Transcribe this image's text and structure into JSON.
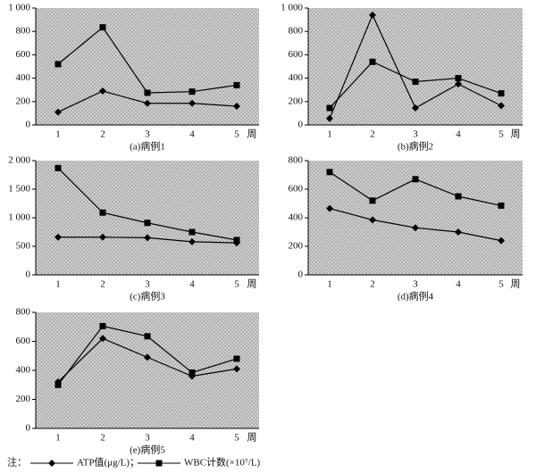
{
  "chart_data": [
    {
      "type": "line",
      "title": "(a)病例1",
      "xlabel": "周",
      "categories": [
        "1",
        "2",
        "3",
        "4",
        "5"
      ],
      "ylim": [
        0,
        1000
      ],
      "yticks": [
        0,
        200,
        400,
        600,
        800,
        {
          "value": 1000,
          "label": "1 000"
        }
      ],
      "series": [
        {
          "color": "#000000",
          "marker": "diamond",
          "values": [
            110,
            290,
            185,
            185,
            160
          ]
        },
        {
          "color": "#000000",
          "marker": "square",
          "values": [
            520,
            835,
            275,
            285,
            340
          ]
        }
      ]
    },
    {
      "type": "line",
      "title": "(b)病例2",
      "xlabel": "周",
      "categories": [
        "1",
        "2",
        "3",
        "4",
        "5"
      ],
      "ylim": [
        0,
        1000
      ],
      "yticks": [
        0,
        200,
        400,
        600,
        800,
        {
          "value": 1000,
          "label": "1 000"
        }
      ],
      "series": [
        {
          "color": "#000000",
          "marker": "diamond",
          "values": [
            55,
            940,
            145,
            350,
            165
          ]
        },
        {
          "color": "#000000",
          "marker": "square",
          "values": [
            145,
            540,
            370,
            400,
            270
          ]
        }
      ]
    },
    {
      "type": "line",
      "title": "(c)病例3",
      "xlabel": "周",
      "categories": [
        "1",
        "2",
        "3",
        "4",
        "5"
      ],
      "ylim": [
        0,
        2000
      ],
      "yticks": [
        0,
        500,
        {
          "value": 1000,
          "label": "1 000"
        },
        {
          "value": 1500,
          "label": "1 500"
        },
        {
          "value": 2000,
          "label": "2 000"
        }
      ],
      "series": [
        {
          "color": "#000000",
          "marker": "diamond",
          "values": [
            660,
            660,
            650,
            580,
            560
          ]
        },
        {
          "color": "#000000",
          "marker": "square",
          "values": [
            1870,
            1090,
            910,
            750,
            610
          ]
        }
      ]
    },
    {
      "type": "line",
      "title": "(d)病例4",
      "xlabel": "周",
      "categories": [
        "1",
        "2",
        "3",
        "4",
        "5"
      ],
      "ylim": [
        0,
        800
      ],
      "yticks": [
        0,
        200,
        400,
        600,
        800
      ],
      "series": [
        {
          "color": "#000000",
          "marker": "diamond",
          "values": [
            465,
            385,
            330,
            300,
            240
          ]
        },
        {
          "color": "#000000",
          "marker": "square",
          "values": [
            720,
            520,
            670,
            550,
            485
          ]
        }
      ]
    },
    {
      "type": "line",
      "title": "(e)病例5",
      "xlabel": "周",
      "categories": [
        "1",
        "2",
        "3",
        "4",
        "5"
      ],
      "ylim": [
        0,
        800
      ],
      "yticks": [
        0,
        200,
        400,
        600,
        800
      ],
      "series": [
        {
          "color": "#000000",
          "marker": "diamond",
          "values": [
            320,
            620,
            490,
            360,
            410
          ]
        },
        {
          "color": "#000000",
          "marker": "square",
          "values": [
            300,
            705,
            635,
            385,
            480
          ]
        }
      ]
    }
  ],
  "legend": {
    "note": "注：",
    "series_names": [
      "ATP值(μg/L)；",
      "WBC计数(×10⁷/L)"
    ]
  }
}
